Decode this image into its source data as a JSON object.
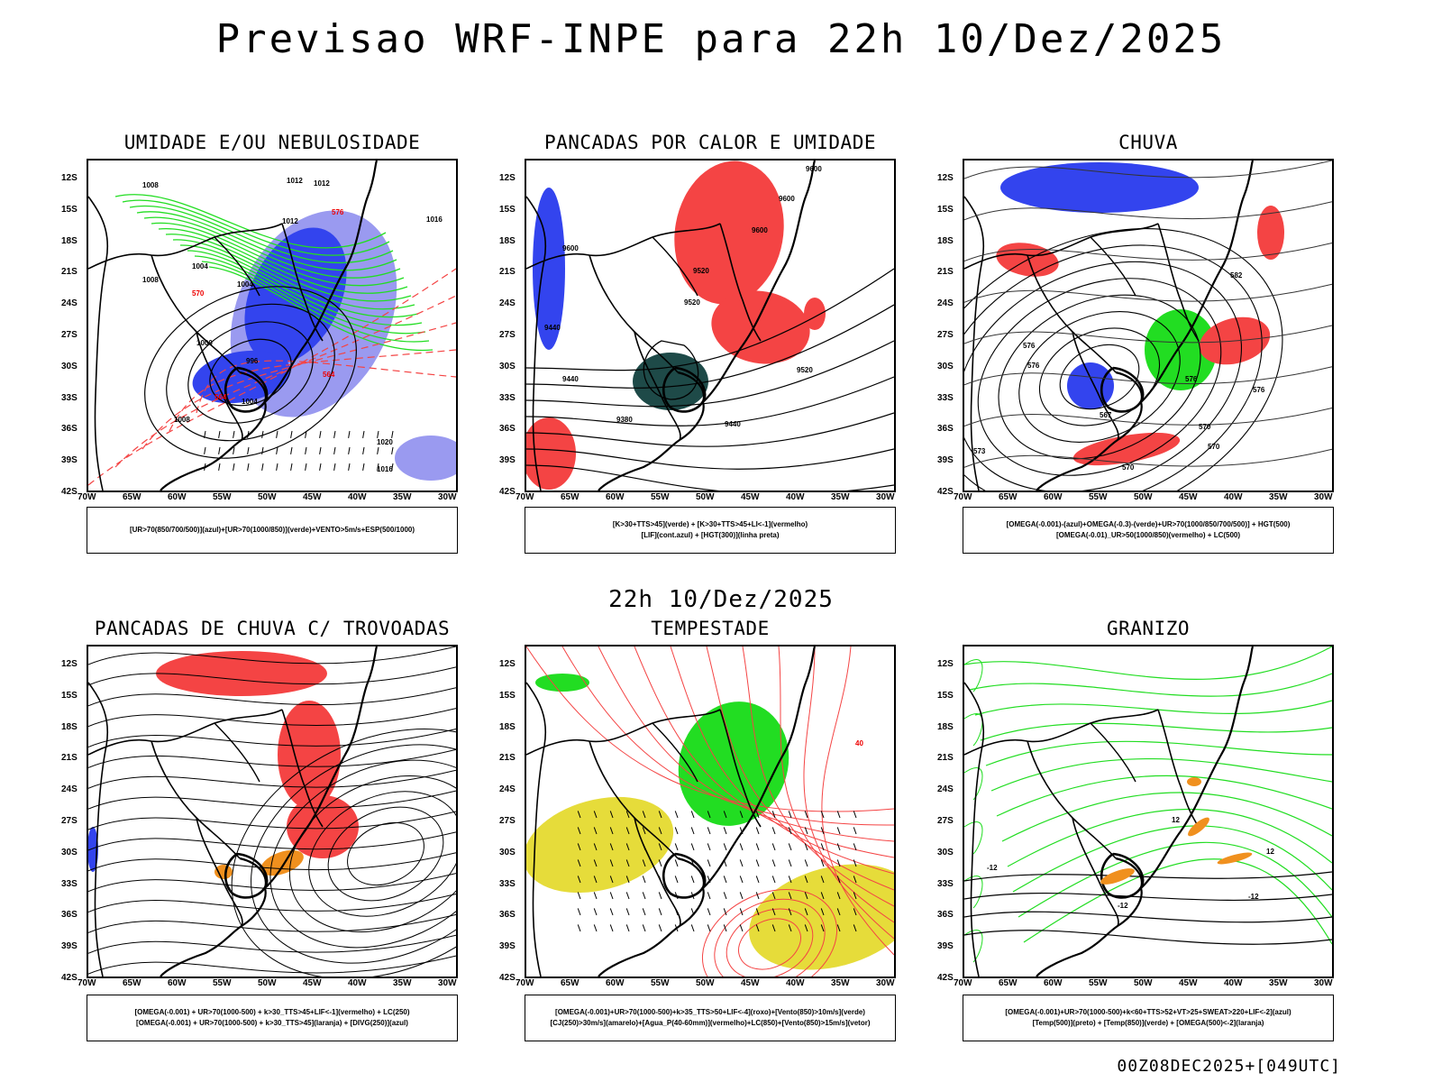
{
  "header": {
    "title": "Previsao WRF-INPE  para 22h 10/Dez/2025"
  },
  "middle": {
    "date": "22h 10/Dez/2025"
  },
  "footer": {
    "run": "00Z08DEC2025+[049UTC]"
  },
  "colors": {
    "blue": "#3344ee",
    "lightblue": "#9a9af0",
    "green": "#22dd22",
    "red": "#f44444",
    "darkteal": "#1e4a48",
    "orange": "#f0901e",
    "yellow": "#e6dc3a"
  },
  "axes": {
    "lat_labels": [
      "12S",
      "15S",
      "18S",
      "21S",
      "24S",
      "27S",
      "30S",
      "33S",
      "36S",
      "39S",
      "42S"
    ],
    "lon_labels": [
      "70W",
      "65W",
      "60W",
      "55W",
      "50W",
      "45W",
      "40W",
      "35W",
      "30W"
    ]
  },
  "panels": [
    {
      "title": "UMIDADE E/OU NEBULOSIDADE",
      "legend": [
        "[UR>70(850/700/500)](azul)+[UR>70(1000/850)](verde)+VENTO>5m/s+ESP(500/1000)"
      ],
      "labels": [
        "1008",
        "1012",
        "1012",
        "1012",
        "1004",
        "1004",
        "1008",
        "1000",
        "996",
        "1004",
        "1008",
        "1020",
        "1016",
        "1016",
        "576",
        "570",
        "564",
        "564"
      ]
    },
    {
      "title": "PANCADAS POR CALOR E UMIDADE",
      "legend": [
        "[K>30+TTS>45](verde) + [K>30+TTS>45+LI<-1](vermelho)",
        "[LIF](cont.azul) + [HGT(300)](linha preta)"
      ],
      "labels": [
        "9600",
        "9600",
        "9600",
        "9600",
        "9520",
        "9520",
        "9440",
        "9440",
        "9380",
        "9440",
        "9520"
      ]
    },
    {
      "title": "CHUVA",
      "legend": [
        "[OMEGA(-0.001)-(azul)+OMEGA(-0.3)-(verde)+UR>70(1000/850/700/500)] + HGT(500)",
        "[OMEGA(-0.01)_UR>50(1000/850)(vermelho) + LC(500)"
      ],
      "labels": [
        "576",
        "582",
        "576",
        "570",
        "567",
        "576",
        "573",
        "570",
        "570",
        "576"
      ]
    },
    {
      "title": "PANCADAS DE CHUVA C/ TROVOADAS",
      "legend": [
        "[OMEGA(-0.001) + UR>70(1000-500) + k>30_TTS>45+LIF<-1](vermelho) + LC(250)",
        "[OMEGA(-0.001) + UR>70(1000-500) + k>30_TTS>45](laranja) + [DIVG(250)](azul)"
      ],
      "labels": []
    },
    {
      "title": "TEMPESTADE",
      "legend": [
        "[OMEGA(-0.001)+UR>70(1000-500)+k>35_TTS>50+LIF<-4](roxo)+[Vento(850)>10m/s](verde)",
        "[CJ(250)>30m/s](amarelo)+[Agua_P(40-60mm)](vermelho)+LC(850)+[Vento(850)>15m/s](vetor)"
      ],
      "labels": [
        "40"
      ]
    },
    {
      "title": "GRANIZO",
      "legend": [
        "[OMEGA(-0.001)+UR>70(1000-500)+k<60+TTS>52+VT>25+SWEAT>220+LIF<-2](azul)",
        "[Temp(500)](preto) + [Temp(850)](verde) + [OMEGA(500)<-2](laranja)"
      ],
      "labels": [
        "-12",
        "-12",
        "-12",
        "12",
        "12"
      ]
    }
  ]
}
